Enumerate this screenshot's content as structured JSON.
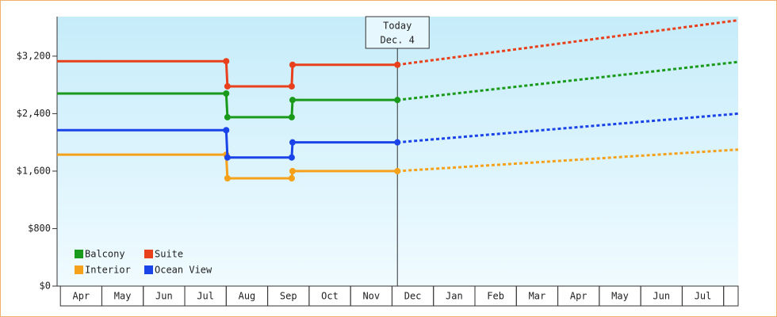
{
  "chart_data": {
    "type": "line",
    "annotation": {
      "x": 8.13,
      "lines": [
        "Today",
        "Dec. 4"
      ]
    },
    "xlim": [
      -0.08,
      16.35
    ],
    "xticks": [
      {
        "value": 0.5,
        "label": "Apr"
      },
      {
        "value": 1.5,
        "label": "May"
      },
      {
        "value": 2.5,
        "label": "Jun"
      },
      {
        "value": 3.5,
        "label": "Jul"
      },
      {
        "value": 4.5,
        "label": "Aug"
      },
      {
        "value": 5.5,
        "label": "Sep"
      },
      {
        "value": 6.5,
        "label": "Oct"
      },
      {
        "value": 7.5,
        "label": "Nov"
      },
      {
        "value": 8.5,
        "label": "Dec"
      },
      {
        "value": 9.5,
        "label": "Jan"
      },
      {
        "value": 10.5,
        "label": "Feb"
      },
      {
        "value": 11.5,
        "label": "Mar"
      },
      {
        "value": 12.5,
        "label": "Apr"
      },
      {
        "value": 13.5,
        "label": "May"
      },
      {
        "value": 14.5,
        "label": "Jun"
      },
      {
        "value": 15.5,
        "label": "Jul"
      }
    ],
    "ylim": [
      0,
      3750
    ],
    "yticks": [
      {
        "value": 0,
        "label": "$0"
      },
      {
        "value": 800,
        "label": "$800"
      },
      {
        "value": 1600,
        "label": "$1,600"
      },
      {
        "value": 2400,
        "label": "$2,400"
      },
      {
        "value": 3200,
        "label": "$3,200"
      }
    ],
    "x": [
      -0.08,
      4.0,
      4.03,
      5.58,
      5.6,
      8.13
    ],
    "forecast_x": [
      8.13,
      16.35
    ],
    "legend": "bottom-left",
    "series": [
      {
        "name": "Balcony",
        "color": "#1a9a1a",
        "values": [
          2680,
          2680,
          2350,
          2350,
          2590,
          2590
        ],
        "forecast_values": [
          2590,
          3120
        ]
      },
      {
        "name": "Suite",
        "color": "#e8401c",
        "values": [
          3130,
          3130,
          2780,
          2780,
          3080,
          3080
        ],
        "forecast_values": [
          3080,
          3700
        ]
      },
      {
        "name": "Interior",
        "color": "#f5a11a",
        "values": [
          1830,
          1830,
          1500,
          1500,
          1600,
          1600
        ],
        "forecast_values": [
          1600,
          1900
        ]
      },
      {
        "name": "Ocean View",
        "color": "#1a44e8",
        "values": [
          2170,
          2170,
          1790,
          1790,
          2000,
          2000
        ],
        "forecast_values": [
          2000,
          2400
        ]
      }
    ]
  }
}
